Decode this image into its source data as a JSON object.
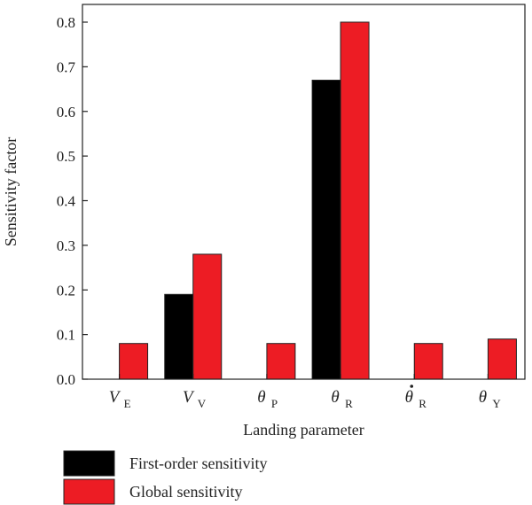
{
  "chart_data": {
    "type": "bar",
    "categories": [
      {
        "symbol": "V",
        "dot": false,
        "sub": "E"
      },
      {
        "symbol": "V",
        "dot": false,
        "sub": "V"
      },
      {
        "symbol": "θ",
        "dot": false,
        "sub": "P"
      },
      {
        "symbol": "θ",
        "dot": false,
        "sub": "R"
      },
      {
        "symbol": "θ",
        "dot": true,
        "sub": "R"
      },
      {
        "symbol": "θ",
        "dot": false,
        "sub": "Y"
      }
    ],
    "series": [
      {
        "name": "First-order sensitivity",
        "color": "#000000",
        "values": [
          0,
          0.19,
          0,
          0.67,
          0,
          0
        ]
      },
      {
        "name": "Global sensitivity",
        "color": "#ed1c24",
        "values": [
          0.08,
          0.28,
          0.08,
          0.8,
          0.08,
          0.09
        ]
      }
    ],
    "xlabel": "Landing parameter",
    "ylabel": "Sensitivity factor",
    "ylim": [
      0,
      0.8
    ],
    "yticks": [
      "0.0",
      "0.1",
      "0.2",
      "0.3",
      "0.4",
      "0.5",
      "0.6",
      "0.7",
      "0.8"
    ],
    "legend_position": "bottom-left",
    "grid": false
  }
}
